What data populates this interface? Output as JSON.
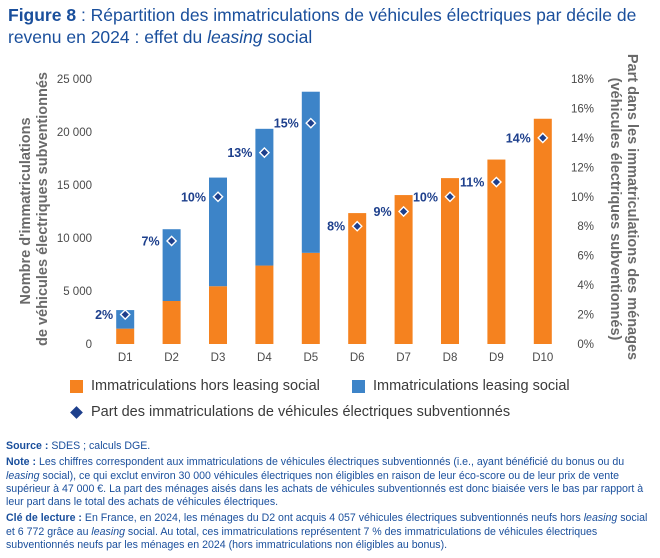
{
  "figure": {
    "title_prefix": "Figure 8",
    "title_text": " : Répartition des immatriculations de véhicules électriques par décile de revenu en 2024 : effet du ",
    "title_italic": "leasing",
    "title_suffix": " social"
  },
  "chart_data": {
    "type": "bar",
    "stacked": true,
    "categories": [
      "D1",
      "D2",
      "D3",
      "D4",
      "D5",
      "D6",
      "D7",
      "D8",
      "D9",
      "D10"
    ],
    "series": [
      {
        "name": "Immatriculations hors leasing social",
        "color": "#f5821f",
        "values": [
          1450,
          4057,
          5450,
          7400,
          8600,
          12350,
          14050,
          15650,
          17400,
          21250
        ]
      },
      {
        "name": "Immatriculations leasing social",
        "color": "#3d84c8",
        "values": [
          1750,
          6772,
          10250,
          12900,
          15200,
          0,
          0,
          0,
          0,
          0
        ]
      }
    ],
    "share_series": {
      "name": "Part des immatriculations de véhicules électriques subventionnés",
      "color": "#1d3f8c",
      "values": [
        2,
        7,
        10,
        13,
        15,
        8,
        9,
        10,
        11,
        14
      ],
      "labels": [
        "2%",
        "7%",
        "10%",
        "13%",
        "15%",
        "8%",
        "9%",
        "10%",
        "11%",
        "14%"
      ]
    },
    "y_left": {
      "label_line1": "Nombre d'immatriculations",
      "label_line2": "de véhicules électriques subventionnés",
      "min": 0,
      "max": 25000,
      "ticks": [
        0,
        5000,
        10000,
        15000,
        20000,
        25000
      ],
      "tick_labels": [
        "0",
        "5 000",
        "10 000",
        "15 000",
        "20 000",
        "25 000"
      ]
    },
    "y_right": {
      "label_line1": "Part dans les immatriculations des ménages",
      "label_line2": "(véhicules électriques subventionnés)",
      "min": 0,
      "max": 18,
      "ticks": [
        0,
        2,
        4,
        6,
        8,
        10,
        12,
        14,
        16,
        18
      ],
      "tick_labels": [
        "0%",
        "2%",
        "4%",
        "6%",
        "8%",
        "10%",
        "12%",
        "14%",
        "16%",
        "18%"
      ]
    }
  },
  "legend": {
    "item1": "Immatriculations hors leasing social",
    "item2": "Immatriculations leasing social",
    "item3": "Part des immatriculations de véhicules électriques subventionnés"
  },
  "notes": {
    "source_label": "Source :",
    "source_text": " SDES ; calculs DGE.",
    "note_label": "Note :",
    "note_text_1": " Les chiffres correspondent aux immatriculations de véhicules électriques subventionnés (i.e., ayant bénéficié du bonus ou du ",
    "note_italic": "leasing",
    "note_text_2": " social), ce qui exclut environ 30 000 véhicules électriques non éligibles en raison de leur éco-score ou de leur prix de vente supérieur à 47 000 €. La part des ménages aisés dans les achats de véhicules subventionnés est donc biaisée vers le bas par rapport à leur part dans le total des achats de véhicules électriques.",
    "reading_label": "Clé de lecture :",
    "reading_text_1": " En France, en 2024, les ménages du D2 ont acquis 4 057 véhicules électriques subventionnés neufs hors ",
    "reading_italic_1": "leasing",
    "reading_text_2": " social et 6 772 grâce au ",
    "reading_italic_2": "leasing",
    "reading_text_3": " social. Au total, ces immatriculations représentent 7 % des immatriculations de véhicules électriques subventionnés neufs par les ménages en 2024 (hors immatriculations non éligibles au bonus)."
  }
}
